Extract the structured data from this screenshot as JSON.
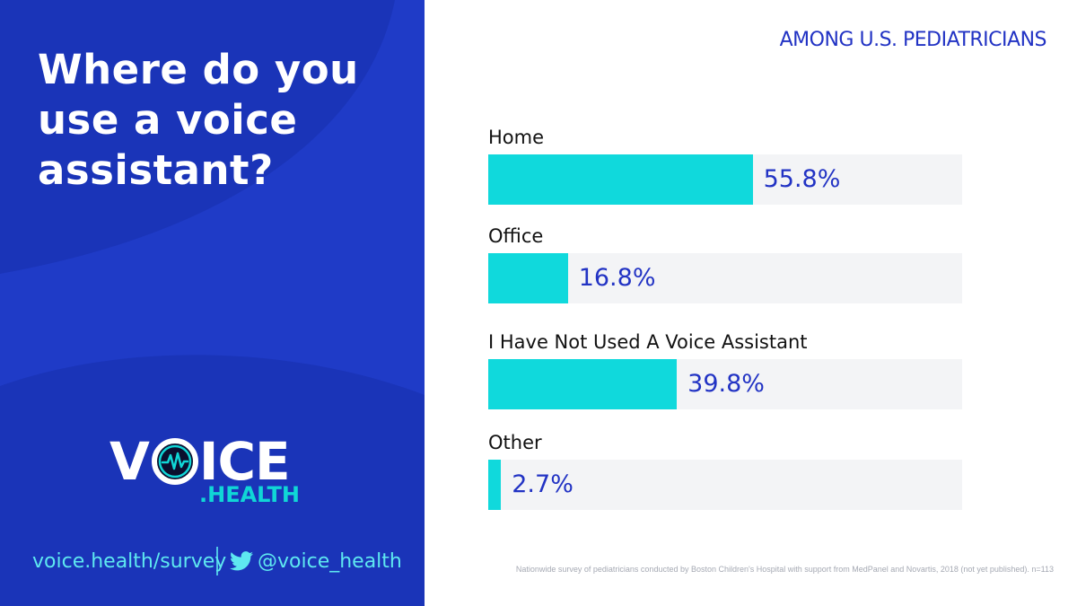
{
  "left_panel": {
    "question": "Where do you use a voice assistant?",
    "logo_main_left": "V",
    "logo_main_right": "ICE",
    "logo_sub": ".HEALTH",
    "survey_url": "voice.health/survey",
    "twitter_handle": "@voice_health",
    "icons": [
      "voice-health-logo-icon",
      "twitter-icon"
    ],
    "colors": {
      "panel": "#1f3bc7",
      "accent": "#10d6d6",
      "link": "#5ee8f0"
    }
  },
  "chart_data": {
    "type": "bar",
    "orientation": "horizontal",
    "title": "Where do you use a voice assistant?",
    "subtitle": "AMONG U.S. PEDIATRICIANS",
    "categories": [
      "Home",
      "Office",
      "I Have Not Used A Voice Assistant",
      "Other"
    ],
    "values": [
      55.8,
      16.8,
      39.8,
      2.7
    ],
    "value_labels": [
      "55.8%",
      "16.8%",
      "39.8%",
      "2.7%"
    ],
    "unit": "%",
    "xlim": [
      0,
      100
    ],
    "grid": false,
    "legend": "none",
    "colors": {
      "bar": "#10d9dc",
      "track": "#f3f4f6",
      "value_text": "#2233c4"
    }
  },
  "footnote": "Nationwide survey of pediatricians conducted by Boston Children's Hospital with support from MedPanel and Novartis, 2018 (not yet published). n=113"
}
